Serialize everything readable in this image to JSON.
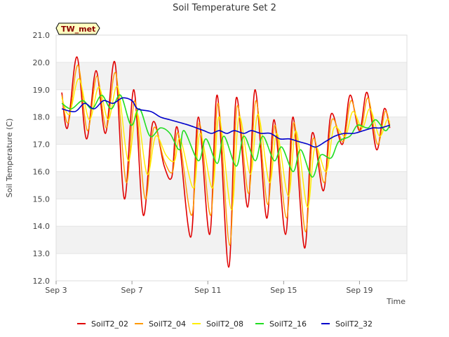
{
  "chart_data": {
    "type": "line",
    "title": "Soil Temperature Set 2",
    "xlabel": "Time",
    "ylabel": "Soil Temperature (C)",
    "site_label": "TW_met",
    "ylim": [
      12.0,
      21.0
    ],
    "xlim_days": [
      3,
      21.5
    ],
    "y_ticks": [
      "12.0",
      "13.0",
      "14.0",
      "15.0",
      "16.0",
      "17.0",
      "18.0",
      "19.0",
      "20.0",
      "21.0"
    ],
    "x_ticks": [
      {
        "day": 3,
        "label": "Sep 3"
      },
      {
        "day": 7,
        "label": "Sep 7"
      },
      {
        "day": 11,
        "label": "Sep 11"
      },
      {
        "day": 15,
        "label": "Sep 15"
      },
      {
        "day": 19,
        "label": "Sep 19"
      }
    ],
    "grid": "horizontal bands",
    "legend_position": "bottom",
    "x_unit": "day of September",
    "series": [
      {
        "name": "SoilT2_02",
        "color": "#e00000",
        "width": 1.6,
        "points": [
          [
            3.3,
            18.9
          ],
          [
            3.6,
            17.6
          ],
          [
            4.1,
            20.2
          ],
          [
            4.6,
            17.2
          ],
          [
            5.1,
            19.7
          ],
          [
            5.6,
            17.4
          ],
          [
            6.1,
            20.0
          ],
          [
            6.6,
            15.0
          ],
          [
            7.1,
            19.0
          ],
          [
            7.6,
            14.4
          ],
          [
            8.1,
            17.8
          ],
          [
            8.7,
            16.2
          ],
          [
            9.1,
            15.8
          ],
          [
            9.4,
            17.6
          ],
          [
            10.1,
            13.6
          ],
          [
            10.5,
            18.0
          ],
          [
            11.1,
            13.7
          ],
          [
            11.5,
            18.8
          ],
          [
            12.1,
            12.5
          ],
          [
            12.5,
            18.7
          ],
          [
            13.1,
            14.7
          ],
          [
            13.5,
            19.0
          ],
          [
            14.1,
            14.3
          ],
          [
            14.5,
            17.9
          ],
          [
            15.1,
            13.7
          ],
          [
            15.5,
            18.0
          ],
          [
            16.1,
            13.2
          ],
          [
            16.5,
            17.4
          ],
          [
            17.1,
            15.3
          ],
          [
            17.5,
            18.1
          ],
          [
            18.1,
            17.0
          ],
          [
            18.5,
            18.8
          ],
          [
            19.0,
            17.5
          ],
          [
            19.4,
            18.9
          ],
          [
            19.9,
            16.8
          ],
          [
            20.3,
            18.3
          ],
          [
            20.6,
            17.6
          ]
        ]
      },
      {
        "name": "SoilT2_04",
        "color": "#ff9a00",
        "width": 1.4,
        "points": [
          [
            3.3,
            18.8
          ],
          [
            3.65,
            17.8
          ],
          [
            4.15,
            19.9
          ],
          [
            4.65,
            17.5
          ],
          [
            5.15,
            19.5
          ],
          [
            5.65,
            17.6
          ],
          [
            6.15,
            19.6
          ],
          [
            6.7,
            15.6
          ],
          [
            7.15,
            18.6
          ],
          [
            7.7,
            15.0
          ],
          [
            8.15,
            17.6
          ],
          [
            8.7,
            16.4
          ],
          [
            9.15,
            16.0
          ],
          [
            9.45,
            17.4
          ],
          [
            10.15,
            14.4
          ],
          [
            10.55,
            17.8
          ],
          [
            11.15,
            14.4
          ],
          [
            11.55,
            18.5
          ],
          [
            12.15,
            13.3
          ],
          [
            12.55,
            18.4
          ],
          [
            13.15,
            15.2
          ],
          [
            13.55,
            18.6
          ],
          [
            14.15,
            14.8
          ],
          [
            14.55,
            17.7
          ],
          [
            15.15,
            14.3
          ],
          [
            15.55,
            17.8
          ],
          [
            16.15,
            13.8
          ],
          [
            16.55,
            17.2
          ],
          [
            17.15,
            15.6
          ],
          [
            17.55,
            17.9
          ],
          [
            18.15,
            17.1
          ],
          [
            18.55,
            18.6
          ],
          [
            19.05,
            17.5
          ],
          [
            19.45,
            18.7
          ],
          [
            19.95,
            17.0
          ],
          [
            20.35,
            18.2
          ],
          [
            20.6,
            17.7
          ]
        ]
      },
      {
        "name": "SoilT2_08",
        "color": "#ffee00",
        "width": 1.4,
        "points": [
          [
            3.3,
            18.7
          ],
          [
            3.7,
            18.1
          ],
          [
            4.2,
            19.4
          ],
          [
            4.75,
            17.9
          ],
          [
            5.25,
            19.1
          ],
          [
            5.75,
            17.9
          ],
          [
            6.25,
            19.1
          ],
          [
            6.8,
            16.4
          ],
          [
            7.25,
            18.2
          ],
          [
            7.8,
            15.9
          ],
          [
            8.25,
            17.3
          ],
          [
            8.8,
            16.6
          ],
          [
            9.25,
            16.4
          ],
          [
            9.55,
            17.2
          ],
          [
            10.25,
            15.4
          ],
          [
            10.6,
            17.4
          ],
          [
            11.25,
            15.4
          ],
          [
            11.6,
            18.0
          ],
          [
            12.25,
            14.6
          ],
          [
            12.65,
            18.0
          ],
          [
            13.25,
            15.9
          ],
          [
            13.65,
            18.1
          ],
          [
            14.25,
            15.6
          ],
          [
            14.65,
            17.4
          ],
          [
            15.25,
            15.1
          ],
          [
            15.65,
            17.5
          ],
          [
            16.25,
            14.7
          ],
          [
            16.65,
            16.9
          ],
          [
            17.25,
            16.0
          ],
          [
            17.65,
            17.6
          ],
          [
            18.25,
            17.3
          ],
          [
            18.65,
            18.2
          ],
          [
            19.15,
            17.6
          ],
          [
            19.55,
            18.3
          ],
          [
            20.05,
            17.3
          ],
          [
            20.45,
            17.9
          ],
          [
            20.6,
            17.8
          ]
        ]
      },
      {
        "name": "SoilT2_16",
        "color": "#22dd22",
        "width": 1.6,
        "points": [
          [
            3.3,
            18.5
          ],
          [
            3.8,
            18.3
          ],
          [
            4.4,
            18.6
          ],
          [
            4.9,
            18.3
          ],
          [
            5.4,
            18.8
          ],
          [
            5.9,
            18.3
          ],
          [
            6.4,
            18.8
          ],
          [
            6.95,
            17.7
          ],
          [
            7.4,
            18.3
          ],
          [
            7.95,
            17.3
          ],
          [
            8.5,
            17.6
          ],
          [
            9.0,
            17.4
          ],
          [
            9.5,
            16.8
          ],
          [
            9.75,
            17.5
          ],
          [
            10.5,
            16.4
          ],
          [
            10.9,
            17.2
          ],
          [
            11.5,
            16.3
          ],
          [
            11.85,
            17.3
          ],
          [
            12.5,
            16.2
          ],
          [
            12.9,
            17.3
          ],
          [
            13.5,
            16.4
          ],
          [
            13.9,
            17.3
          ],
          [
            14.5,
            16.4
          ],
          [
            14.9,
            16.9
          ],
          [
            15.5,
            16.0
          ],
          [
            15.9,
            16.8
          ],
          [
            16.5,
            15.8
          ],
          [
            16.95,
            16.6
          ],
          [
            17.5,
            16.5
          ],
          [
            17.9,
            17.1
          ],
          [
            18.5,
            17.3
          ],
          [
            18.9,
            17.7
          ],
          [
            19.45,
            17.6
          ],
          [
            19.85,
            17.9
          ],
          [
            20.35,
            17.5
          ],
          [
            20.6,
            17.7
          ]
        ]
      },
      {
        "name": "SoilT2_32",
        "color": "#0000cc",
        "width": 1.6,
        "points": [
          [
            3.3,
            18.3
          ],
          [
            4.0,
            18.2
          ],
          [
            4.5,
            18.5
          ],
          [
            5.0,
            18.3
          ],
          [
            5.5,
            18.6
          ],
          [
            6.0,
            18.5
          ],
          [
            6.5,
            18.7
          ],
          [
            7.0,
            18.6
          ],
          [
            7.3,
            18.3
          ],
          [
            8.0,
            18.2
          ],
          [
            8.5,
            18.0
          ],
          [
            9.0,
            17.9
          ],
          [
            9.5,
            17.8
          ],
          [
            10.0,
            17.7
          ],
          [
            10.4,
            17.6
          ],
          [
            10.8,
            17.5
          ],
          [
            11.2,
            17.4
          ],
          [
            11.6,
            17.5
          ],
          [
            12.0,
            17.4
          ],
          [
            12.4,
            17.5
          ],
          [
            12.9,
            17.4
          ],
          [
            13.3,
            17.5
          ],
          [
            13.8,
            17.4
          ],
          [
            14.3,
            17.4
          ],
          [
            14.8,
            17.2
          ],
          [
            15.3,
            17.2
          ],
          [
            15.8,
            17.1
          ],
          [
            16.3,
            17.0
          ],
          [
            16.7,
            16.9
          ],
          [
            17.2,
            17.1
          ],
          [
            17.7,
            17.3
          ],
          [
            18.2,
            17.4
          ],
          [
            18.7,
            17.4
          ],
          [
            19.2,
            17.5
          ],
          [
            19.7,
            17.6
          ],
          [
            20.1,
            17.6
          ],
          [
            20.6,
            17.7
          ]
        ]
      }
    ]
  }
}
